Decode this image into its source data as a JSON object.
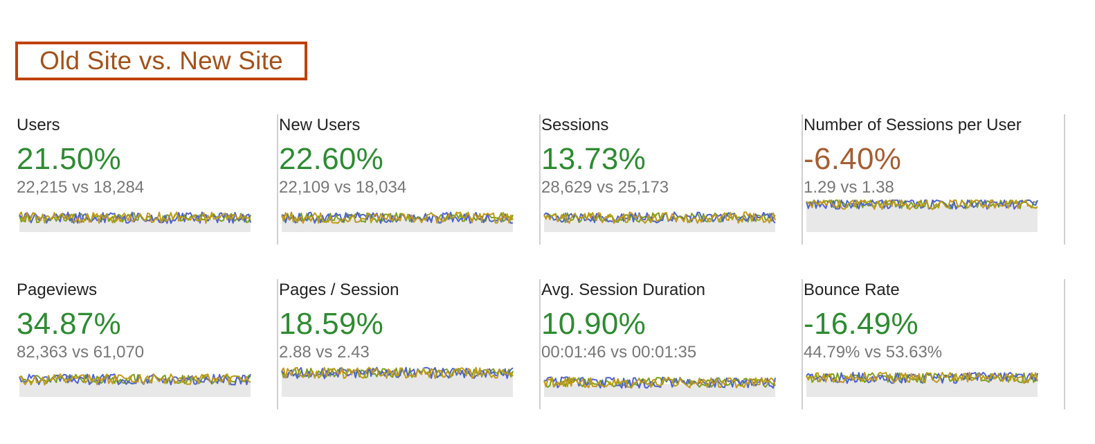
{
  "title": "Old Site vs. New Site",
  "colors": {
    "positive": "#2e8b32",
    "negative": "#a55d33",
    "title_border": "#c0410c",
    "title_text": "#a0521c",
    "series_old": "#4f62d1",
    "series_new": "#c09a1a",
    "series_overlap": "#7aa01c",
    "baseline_fill": "#e8e8e8"
  },
  "metrics": [
    {
      "label": "Users",
      "change": "21.50%",
      "comparison": "22,215 vs 18,284",
      "trend": "positive",
      "spark_level": 0.45
    },
    {
      "label": "New Users",
      "change": "22.60%",
      "comparison": "22,109 vs 18,034",
      "trend": "positive",
      "spark_level": 0.45
    },
    {
      "label": "Sessions",
      "change": "13.73%",
      "comparison": "28,629 vs 25,173",
      "trend": "positive",
      "spark_level": 0.45
    },
    {
      "label": "Number of Sessions per User",
      "change": "-6.40%",
      "comparison": "1.29 vs 1.38",
      "trend": "negative",
      "spark_level": 0.88
    },
    {
      "label": "Pageviews",
      "change": "34.87%",
      "comparison": "82,363 vs 61,070",
      "trend": "positive",
      "spark_level": 0.55
    },
    {
      "label": "Pages / Session",
      "change": "18.59%",
      "comparison": "2.88 vs 2.43",
      "trend": "positive",
      "spark_level": 0.75
    },
    {
      "label": "Avg. Session Duration",
      "change": "10.90%",
      "comparison": "00:01:46 vs 00:01:35",
      "trend": "positive",
      "spark_level": 0.45
    },
    {
      "label": "Bounce Rate",
      "change": "-16.49%",
      "comparison": "44.79% vs 53.63%",
      "trend": "positive",
      "spark_level": 0.6
    }
  ]
}
